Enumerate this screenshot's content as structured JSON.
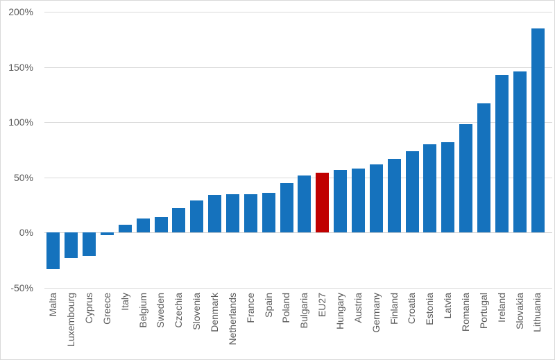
{
  "chart_data": {
    "type": "bar",
    "title": "",
    "xlabel": "",
    "ylabel": "",
    "categories": [
      "Malta",
      "Luxembourg",
      "Cyprus",
      "Greece",
      "Italy",
      "Belgium",
      "Sweden",
      "Czechia",
      "Slovenia",
      "Denmark",
      "Netherlands",
      "France",
      "Spain",
      "Poland",
      "Bulgaria",
      "EU27",
      "Hungary",
      "Austria",
      "Germany",
      "Finland",
      "Croatia",
      "Estonia",
      "Latvia",
      "Romania",
      "Portugal",
      "Ireland",
      "Slovakia",
      "Lithuania"
    ],
    "values": [
      -33,
      -23,
      -21,
      -2,
      7,
      13,
      14,
      22,
      29,
      34,
      35,
      35,
      36,
      45,
      52,
      54,
      57,
      58,
      62,
      67,
      74,
      80,
      82,
      98,
      117,
      143,
      146,
      185
    ],
    "unit": "%",
    "ylim": [
      -50,
      200
    ],
    "yticks": [
      200,
      150,
      100,
      50,
      0,
      -50
    ],
    "ytick_suffix": "%",
    "grid": true,
    "legend": false,
    "x_label_rotation": -90,
    "highlight_category": "EU27"
  },
  "colors": {
    "bar": "#1572bd",
    "highlight": "#c00000",
    "grid": "#d9d9d9",
    "zero_line": "#cfcfcf",
    "text": "#595959",
    "border": "#d9d9d9",
    "background": "#ffffff"
  }
}
